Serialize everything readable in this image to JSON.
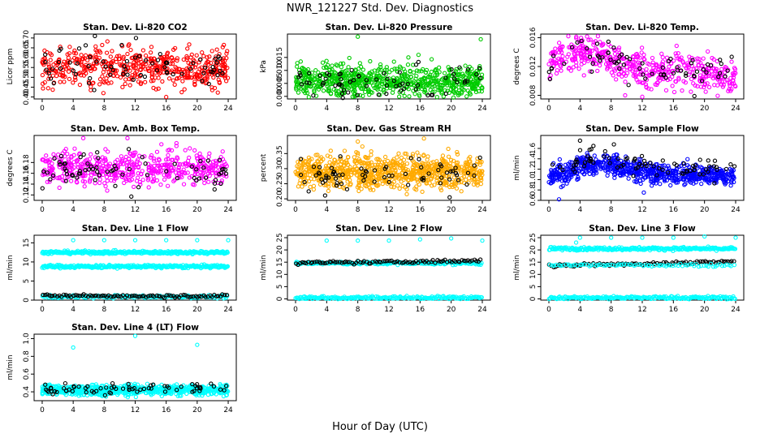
{
  "figure": {
    "title": "NWR_121227  Std. Dev. Diagnostics",
    "xlabel": "Hour of Day (UTC)"
  },
  "chart_data": [
    {
      "type": "scatter",
      "title": "Stan. Dev. Li-820 CO2",
      "ylabel": "Licor ppm",
      "xlim": [
        0,
        24
      ],
      "x_ticks": [
        0,
        4,
        8,
        12,
        16,
        20,
        24
      ],
      "ylim": [
        0.39,
        0.72
      ],
      "y_ticks": [
        "0.40",
        "0.45",
        "0.50",
        "0.55",
        "0.60",
        "0.65",
        "0.70"
      ],
      "series": [
        {
          "color": "#ff0000",
          "n": 500,
          "center": 0.55,
          "spread": 0.05
        },
        {
          "color": "#000000",
          "n": 70,
          "center": 0.54,
          "spread": 0.05
        }
      ],
      "outliers": [
        {
          "x": 6.8,
          "y": 0.71,
          "color": "#000000"
        },
        {
          "x": 12.1,
          "y": 0.7,
          "color": "#000000"
        },
        {
          "x": 16.0,
          "y": 0.4,
          "color": "#ff0000"
        },
        {
          "x": 7.9,
          "y": 0.42,
          "color": "#ff0000"
        }
      ]
    },
    {
      "type": "scatter",
      "title": "Stan. Dev. Li-820 Pressure",
      "ylabel": "kPa",
      "xlim": [
        0,
        24
      ],
      "x_ticks": [
        0,
        4,
        8,
        12,
        16,
        20,
        24
      ],
      "ylim": [
        -0.001,
        0.024
      ],
      "y_ticks": [
        "0.000",
        "0.005",
        "0.010",
        "0.015"
      ],
      "series": [
        {
          "color": "#00cc00",
          "n": 700,
          "center": 0.006,
          "spread": 0.003
        },
        {
          "color": "#000000",
          "n": 70,
          "center": 0.006,
          "spread": 0.003
        }
      ],
      "outliers": [
        {
          "x": 8.0,
          "y": 0.023,
          "color": "#00cc00"
        },
        {
          "x": 23.8,
          "y": 0.022,
          "color": "#00cc00"
        },
        {
          "x": 14.5,
          "y": 0.015,
          "color": "#00cc00"
        },
        {
          "x": 15.8,
          "y": 0.016,
          "color": "#00cc00"
        },
        {
          "x": 3.5,
          "y": 0.013,
          "color": "#00cc00"
        }
      ]
    },
    {
      "type": "scatter",
      "title": "Stan. Dev. Li-820 Temp.",
      "ylabel": "degrees C",
      "xlim": [
        0,
        24
      ],
      "x_ticks": [
        0,
        4,
        8,
        12,
        16,
        20,
        24
      ],
      "ylim": [
        0.0075,
        0.0165
      ],
      "y_ticks": [
        "0.008",
        "0.012",
        "0.016"
      ],
      "series": [
        {
          "color": "#ff00ff",
          "n": 500,
          "center": 0.0125,
          "spread": 0.0012
        },
        {
          "color": "#000000",
          "n": 70,
          "center": 0.0125,
          "spread": 0.0012
        }
      ],
      "trend": [
        [
          0,
          0.0125
        ],
        [
          4,
          0.014
        ],
        [
          8,
          0.0132
        ],
        [
          12,
          0.0112
        ],
        [
          16,
          0.0115
        ],
        [
          20,
          0.0112
        ],
        [
          24,
          0.0105
        ]
      ],
      "outliers": [
        {
          "x": 9.8,
          "y": 0.008,
          "color": "#ff00ff"
        },
        {
          "x": 12.0,
          "y": 0.0078,
          "color": "#ff00ff"
        },
        {
          "x": 18.7,
          "y": 0.0079,
          "color": "#000000"
        },
        {
          "x": 2.5,
          "y": 0.0162,
          "color": "#ff00ff"
        }
      ]
    },
    {
      "type": "scatter",
      "title": "Stan. Dev. Amb. Box Temp.",
      "ylabel": "degrees C",
      "xlim": [
        0,
        24
      ],
      "x_ticks": [
        0,
        4,
        8,
        12,
        16,
        20,
        24
      ],
      "ylim": [
        0.11,
        0.23
      ],
      "y_ticks": [
        "0.12",
        "0.14",
        "0.16",
        "0.18"
      ],
      "series": [
        {
          "color": "#ff00ff",
          "n": 500,
          "center": 0.17,
          "spread": 0.016
        },
        {
          "color": "#000000",
          "n": 70,
          "center": 0.165,
          "spread": 0.016
        }
      ],
      "outliers": [
        {
          "x": 5.3,
          "y": 0.225,
          "color": "#ff00ff"
        },
        {
          "x": 11.0,
          "y": 0.225,
          "color": "#ff00ff"
        },
        {
          "x": 11.5,
          "y": 0.117,
          "color": "#000000"
        }
      ]
    },
    {
      "type": "scatter",
      "title": "Stan. Dev. Gas Stream RH",
      "ylabel": "percent",
      "xlim": [
        0,
        24
      ],
      "x_ticks": [
        0,
        4,
        8,
        12,
        16,
        20,
        24
      ],
      "ylim": [
        0.195,
        0.41
      ],
      "y_ticks": [
        "0.20",
        "0.25",
        "0.30",
        "0.35"
      ],
      "series": [
        {
          "color": "#ffaa00",
          "n": 800,
          "center": 0.29,
          "spread": 0.028
        },
        {
          "color": "#000000",
          "n": 70,
          "center": 0.28,
          "spread": 0.025
        }
      ],
      "outliers": [
        {
          "x": 8.0,
          "y": 0.39,
          "color": "#ffaa00"
        },
        {
          "x": 16.5,
          "y": 0.4,
          "color": "#ffaa00"
        },
        {
          "x": 19.8,
          "y": 0.205,
          "color": "#000000"
        }
      ]
    },
    {
      "type": "scatter",
      "title": "Stan. Dev. Sample Flow",
      "ylabel": "ml/min",
      "xlim": [
        0,
        24
      ],
      "x_ticks": [
        0,
        4,
        8,
        12,
        16,
        20,
        24
      ],
      "ylim": [
        0.6,
        1.85
      ],
      "y_ticks": [
        "0.6",
        "0.8",
        "1.0",
        "1.2",
        "1.4",
        "1.6"
      ],
      "series": [
        {
          "color": "#0000ff",
          "n": 700,
          "center": 1.15,
          "spread": 0.1
        },
        {
          "color": "#000000",
          "n": 80,
          "center": 1.3,
          "spread": 0.12
        }
      ],
      "trend": [
        [
          0,
          1.05
        ],
        [
          3,
          1.15
        ],
        [
          5,
          1.3
        ],
        [
          8,
          1.3
        ],
        [
          12,
          1.15
        ],
        [
          16,
          1.1
        ],
        [
          24,
          1.05
        ]
      ],
      "outliers": [
        {
          "x": 4.0,
          "y": 1.75,
          "color": "#000000"
        },
        {
          "x": 1.3,
          "y": 0.62,
          "color": "#0000ff"
        },
        {
          "x": 12.2,
          "y": 0.75,
          "color": "#0000ff"
        }
      ]
    },
    {
      "type": "scatter",
      "title": "Stan. Dev. Line 1 Flow",
      "ylabel": "ml/min",
      "xlim": [
        0,
        24
      ],
      "x_ticks": [
        0,
        4,
        8,
        12,
        16,
        20,
        24
      ],
      "ylim": [
        0,
        17
      ],
      "y_ticks": [
        "0",
        "5",
        "10",
        "15"
      ],
      "bands": [
        {
          "color": "#00ffff",
          "y": 12.5,
          "n": 300
        },
        {
          "color": "#00ffff",
          "y": 8.8,
          "n": 300
        },
        {
          "color": "#00ffff",
          "y": 0.9,
          "n": 150
        },
        {
          "color": "#000000",
          "y": 1.1,
          "n": 90
        }
      ],
      "outliers": [
        {
          "x": 4.0,
          "y": 15.7,
          "color": "#00ffff"
        },
        {
          "x": 8.0,
          "y": 15.7,
          "color": "#00ffff"
        },
        {
          "x": 12.0,
          "y": 15.7,
          "color": "#00ffff"
        },
        {
          "x": 16.0,
          "y": 15.7,
          "color": "#00ffff"
        },
        {
          "x": 20.0,
          "y": 15.7,
          "color": "#00ffff"
        },
        {
          "x": 24.0,
          "y": 15.7,
          "color": "#00ffff"
        }
      ]
    },
    {
      "type": "scatter",
      "title": "Stan. Dev. Line 2 Flow",
      "ylabel": "ml/min",
      "xlim": [
        0,
        24
      ],
      "x_ticks": [
        0,
        4,
        8,
        12,
        16,
        20,
        24
      ],
      "ylim": [
        -0.5,
        26
      ],
      "y_ticks": [
        "0",
        "5",
        "10",
        "15",
        "20",
        "25"
      ],
      "bands": [
        {
          "color": "#00ffff",
          "y": 14.6,
          "n": 200
        },
        {
          "color": "#000000",
          "y": 14.6,
          "n": 90,
          "slope": 0.04
        },
        {
          "color": "#00ffff",
          "y": 0.5,
          "n": 200
        }
      ],
      "outliers": [
        {
          "x": 4.0,
          "y": 23.8,
          "color": "#00ffff"
        },
        {
          "x": 8.0,
          "y": 23.8,
          "color": "#00ffff"
        },
        {
          "x": 12.0,
          "y": 23.8,
          "color": "#00ffff"
        },
        {
          "x": 16.0,
          "y": 24.3,
          "color": "#00ffff"
        },
        {
          "x": 20.0,
          "y": 24.7,
          "color": "#00ffff"
        },
        {
          "x": 24.0,
          "y": 23.8,
          "color": "#00ffff"
        }
      ]
    },
    {
      "type": "scatter",
      "title": "Stan. Dev. Line 3 Flow",
      "ylabel": "ml/min",
      "xlim": [
        0,
        24
      ],
      "x_ticks": [
        0,
        4,
        8,
        12,
        16,
        20,
        24
      ],
      "ylim": [
        -0.5,
        26
      ],
      "y_ticks": [
        "0",
        "5",
        "10",
        "15",
        "20",
        "25"
      ],
      "bands": [
        {
          "color": "#00ffff",
          "y": 20.5,
          "n": 250
        },
        {
          "color": "#000000",
          "y": 13.5,
          "n": 90,
          "slope": 0.07
        },
        {
          "color": "#00ffff",
          "y": 13.8,
          "n": 80
        },
        {
          "color": "#00ffff",
          "y": 0.5,
          "n": 200
        }
      ],
      "outliers": [
        {
          "x": 4.0,
          "y": 25.0,
          "color": "#00ffff"
        },
        {
          "x": 8.0,
          "y": 25.0,
          "color": "#00ffff"
        },
        {
          "x": 12.0,
          "y": 25.0,
          "color": "#00ffff"
        },
        {
          "x": 16.0,
          "y": 25.0,
          "color": "#00ffff"
        },
        {
          "x": 20.0,
          "y": 25.5,
          "color": "#00ffff"
        },
        {
          "x": 24.0,
          "y": 25.0,
          "color": "#00ffff"
        },
        {
          "x": 3.5,
          "y": 23.0,
          "color": "#00ffff"
        }
      ]
    },
    {
      "type": "scatter",
      "title": "Stan. Dev. Line 4 (LT) Flow",
      "ylabel": "ml/min",
      "xlim": [
        0,
        24
      ],
      "x_ticks": [
        0,
        4,
        8,
        12,
        16,
        20,
        24
      ],
      "ylim": [
        0.3,
        1.05
      ],
      "y_ticks": [
        "0.4",
        "0.6",
        "0.8",
        "1.0"
      ],
      "series": [
        {
          "color": "#00ffff",
          "n": 700,
          "center": 0.42,
          "spread": 0.03
        },
        {
          "color": "#000000",
          "n": 70,
          "center": 0.43,
          "spread": 0.03
        }
      ],
      "outliers": [
        {
          "x": 4.0,
          "y": 0.9,
          "color": "#00ffff"
        },
        {
          "x": 12.0,
          "y": 1.03,
          "color": "#00ffff"
        },
        {
          "x": 20.0,
          "y": 0.93,
          "color": "#00ffff"
        }
      ]
    }
  ]
}
